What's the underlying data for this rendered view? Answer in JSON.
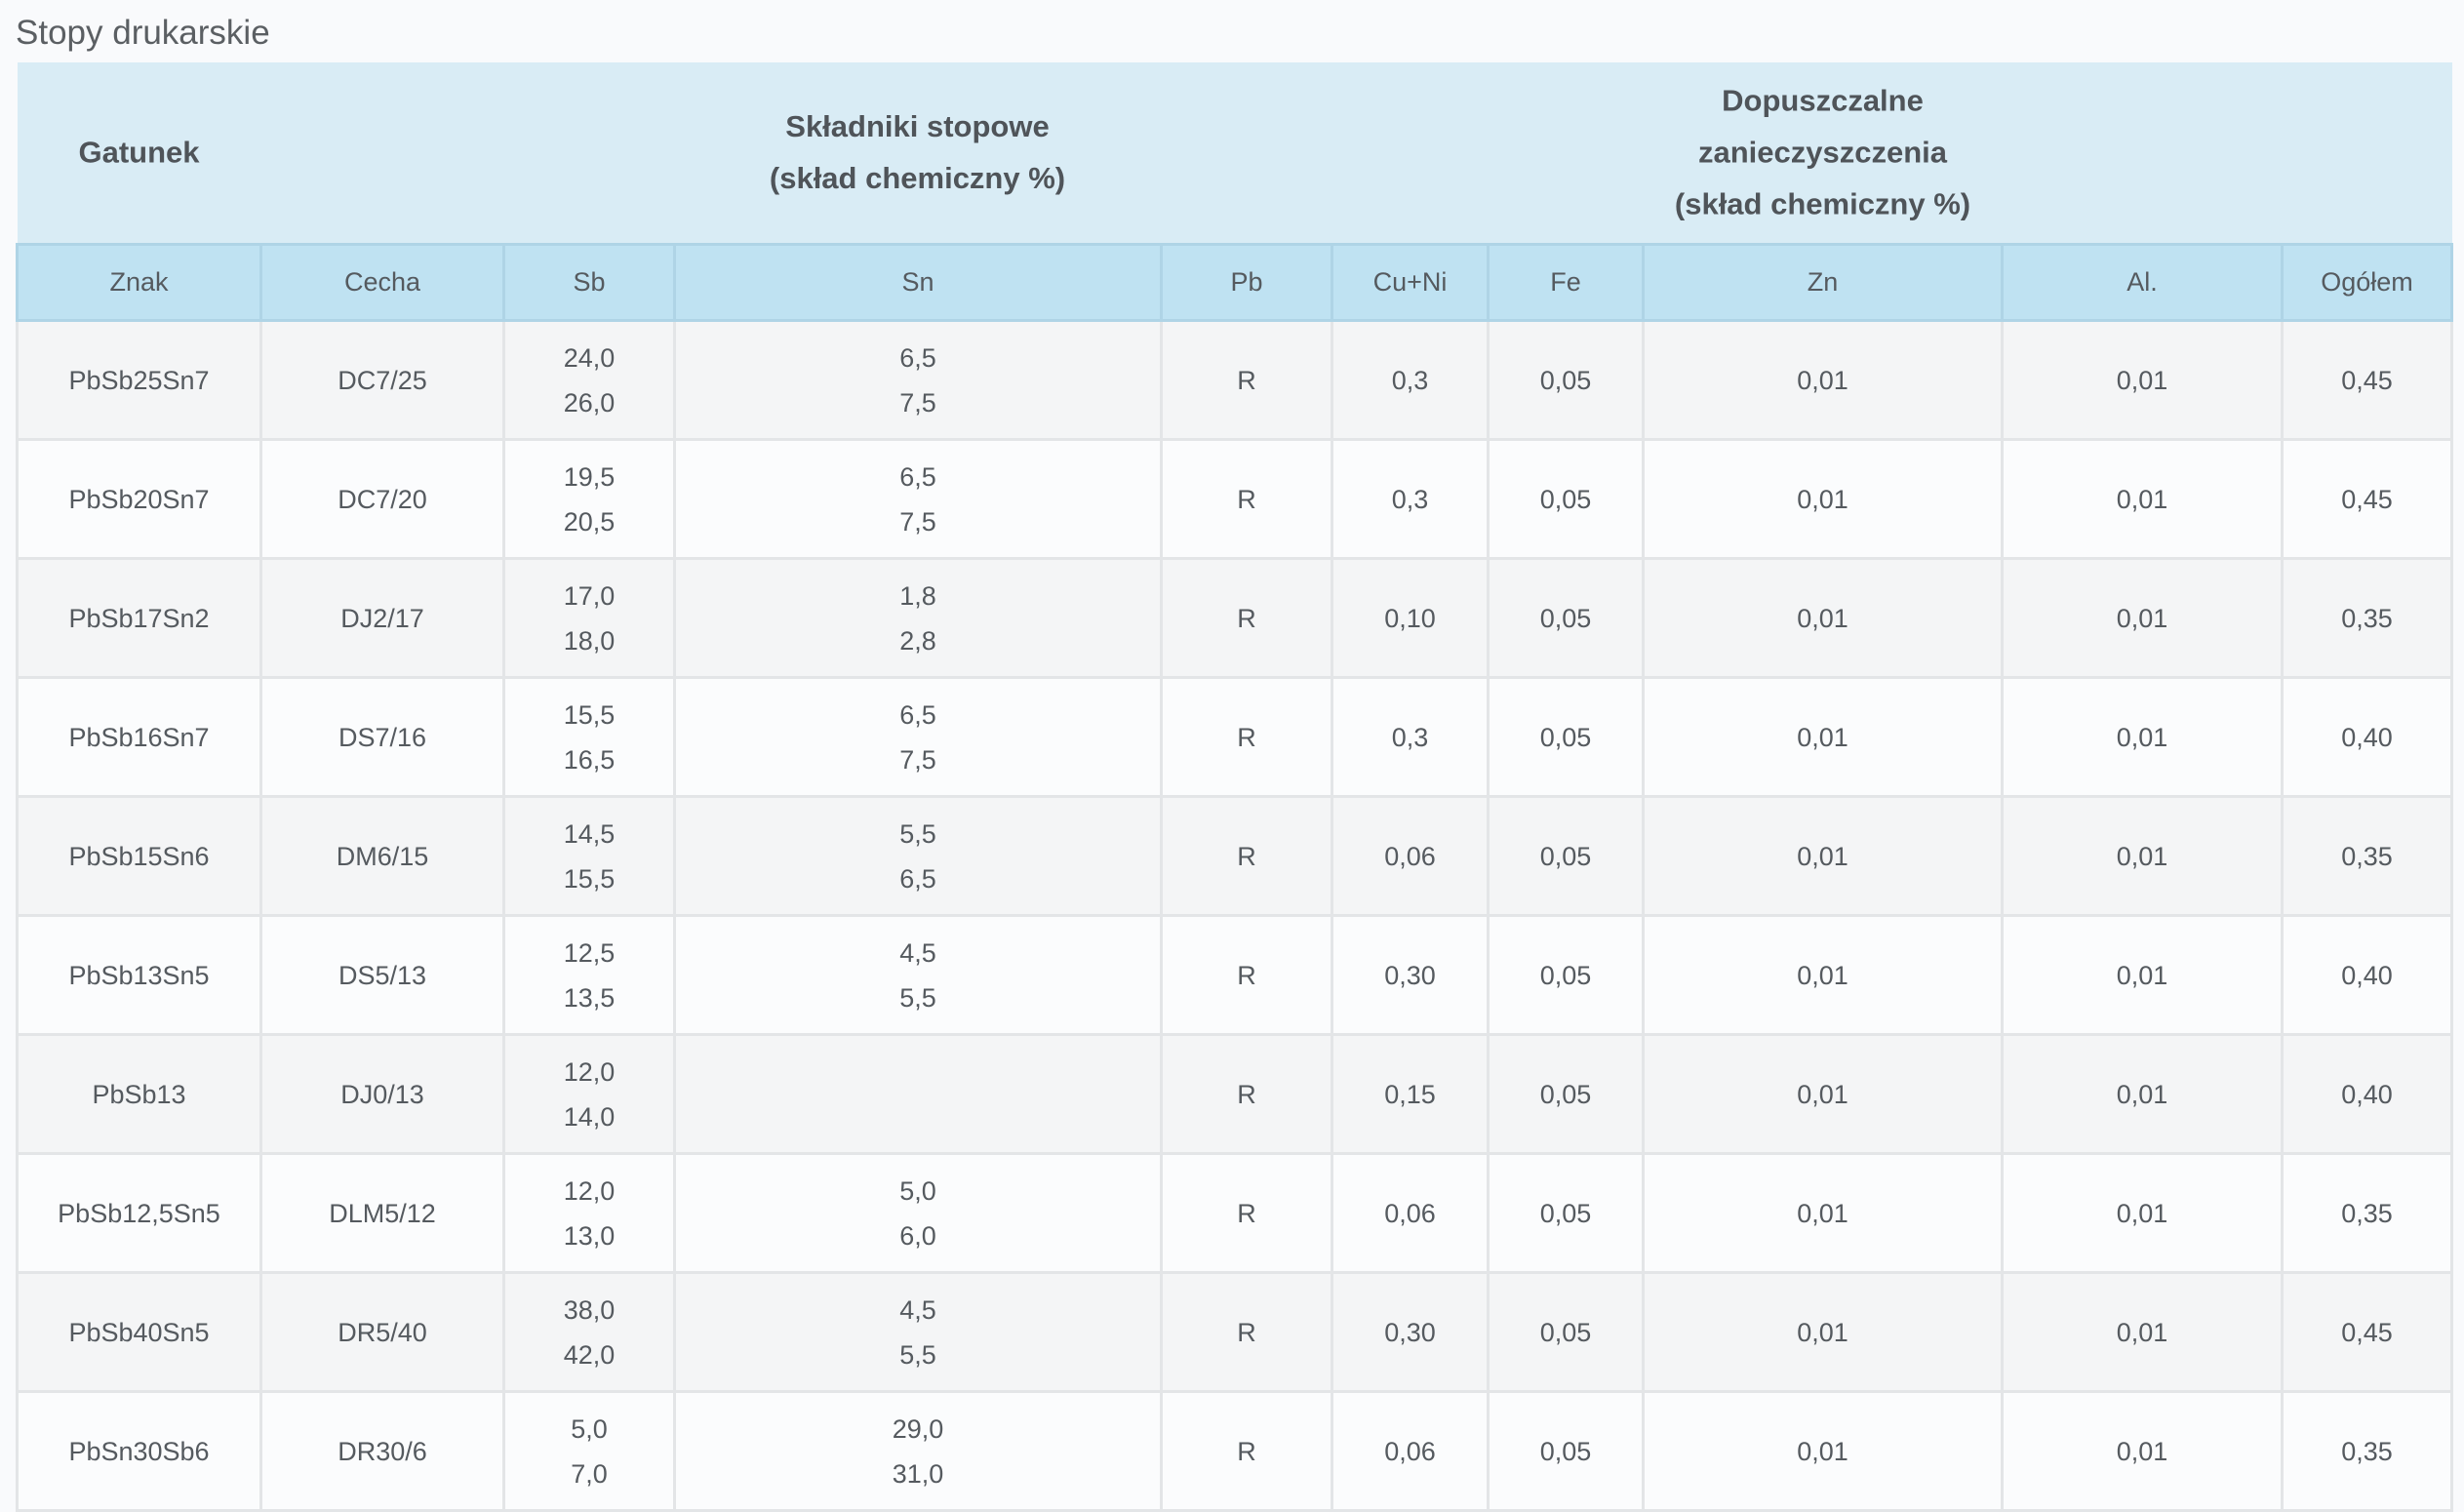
{
  "title": "Stopy drukarskie",
  "header_groups": {
    "gatunek": "Gatunek",
    "skladniki": [
      "Składniki stopowe",
      "(skład chemiczny %)"
    ],
    "zanieczyszczenia": [
      "Dopuszczalne",
      "zanieczyszczenia",
      "(skład chemiczny %)"
    ]
  },
  "columns": [
    "Znak",
    "Cecha",
    "Sb",
    "Sn",
    "Pb",
    "Cu+Ni",
    "Fe",
    "Zn",
    "Al.",
    "Ogółem"
  ],
  "rows": [
    {
      "znak": "PbSb25Sn7",
      "cecha": "DC7/25",
      "sb": [
        "24,0",
        "26,0"
      ],
      "sn": [
        "6,5",
        "7,5"
      ],
      "pb": "R",
      "cuni": "0,3",
      "fe": "0,05",
      "zn": "0,01",
      "al": "0,01",
      "ogolem": "0,45"
    },
    {
      "znak": "PbSb20Sn7",
      "cecha": "DC7/20",
      "sb": [
        "19,5",
        "20,5"
      ],
      "sn": [
        "6,5",
        "7,5"
      ],
      "pb": "R",
      "cuni": "0,3",
      "fe": "0,05",
      "zn": "0,01",
      "al": "0,01",
      "ogolem": "0,45"
    },
    {
      "znak": "PbSb17Sn2",
      "cecha": "DJ2/17",
      "sb": [
        "17,0",
        "18,0"
      ],
      "sn": [
        "1,8",
        "2,8"
      ],
      "pb": "R",
      "cuni": "0,10",
      "fe": "0,05",
      "zn": "0,01",
      "al": "0,01",
      "ogolem": "0,35"
    },
    {
      "znak": "PbSb16Sn7",
      "cecha": "DS7/16",
      "sb": [
        "15,5",
        "16,5"
      ],
      "sn": [
        "6,5",
        "7,5"
      ],
      "pb": "R",
      "cuni": "0,3",
      "fe": "0,05",
      "zn": "0,01",
      "al": "0,01",
      "ogolem": "0,40"
    },
    {
      "znak": "PbSb15Sn6",
      "cecha": "DM6/15",
      "sb": [
        "14,5",
        "15,5"
      ],
      "sn": [
        "5,5",
        "6,5"
      ],
      "pb": "R",
      "cuni": "0,06",
      "fe": "0,05",
      "zn": "0,01",
      "al": "0,01",
      "ogolem": "0,35"
    },
    {
      "znak": "PbSb13Sn5",
      "cecha": "DS5/13",
      "sb": [
        "12,5",
        "13,5"
      ],
      "sn": [
        "4,5",
        "5,5"
      ],
      "pb": "R",
      "cuni": "0,30",
      "fe": "0,05",
      "zn": "0,01",
      "al": "0,01",
      "ogolem": "0,40"
    },
    {
      "znak": "PbSb13",
      "cecha": "DJ0/13",
      "sb": [
        "12,0",
        "14,0"
      ],
      "sn": [
        "",
        ""
      ],
      "pb": "R",
      "cuni": "0,15",
      "fe": "0,05",
      "zn": "0,01",
      "al": "0,01",
      "ogolem": "0,40"
    },
    {
      "znak": "PbSb12,5Sn5",
      "cecha": "DLM5/12",
      "sb": [
        "12,0",
        "13,0"
      ],
      "sn": [
        "5,0",
        "6,0"
      ],
      "pb": "R",
      "cuni": "0,06",
      "fe": "0,05",
      "zn": "0,01",
      "al": "0,01",
      "ogolem": "0,35"
    },
    {
      "znak": "PbSb40Sn5",
      "cecha": "DR5/40",
      "sb": [
        "38,0",
        "42,0"
      ],
      "sn": [
        "4,5",
        "5,5"
      ],
      "pb": "R",
      "cuni": "0,30",
      "fe": "0,05",
      "zn": "0,01",
      "al": "0,01",
      "ogolem": "0,45"
    },
    {
      "znak": "PbSn30Sb6",
      "cecha": "DR30/6",
      "sb": [
        "5,0",
        "7,0"
      ],
      "sn": [
        "29,0",
        "31,0"
      ],
      "pb": "R",
      "cuni": "0,06",
      "fe": "0,05",
      "zn": "0,01",
      "al": "0,01",
      "ogolem": "0,35"
    }
  ]
}
